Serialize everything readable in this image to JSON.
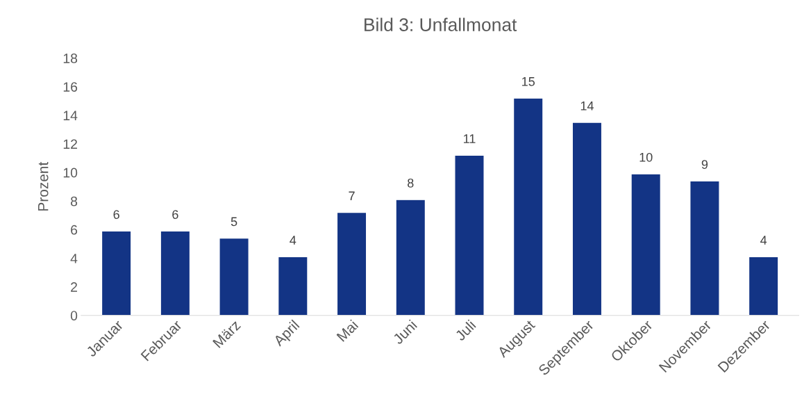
{
  "chart_data": {
    "type": "bar",
    "title": "Bild 3: Unfallmonat",
    "ylabel": "Prozent",
    "categories": [
      "Januar",
      "Februar",
      "März",
      "April",
      "Mai",
      "Juni",
      "Juli",
      "August",
      "September",
      "Oktober",
      "November",
      "Dezember"
    ],
    "values": [
      5.9,
      5.9,
      5.4,
      4.1,
      7.2,
      8.1,
      11.2,
      15.2,
      13.5,
      9.9,
      9.4,
      4.1
    ],
    "value_labels": [
      "6",
      "6",
      "5",
      "4",
      "7",
      "8",
      "11",
      "15",
      "14",
      "10",
      "9",
      "4"
    ],
    "color": "#133485",
    "ylim": [
      0,
      18
    ],
    "yticks": [
      0,
      2,
      4,
      6,
      8,
      10,
      12,
      14,
      16,
      18
    ],
    "grid": false
  }
}
